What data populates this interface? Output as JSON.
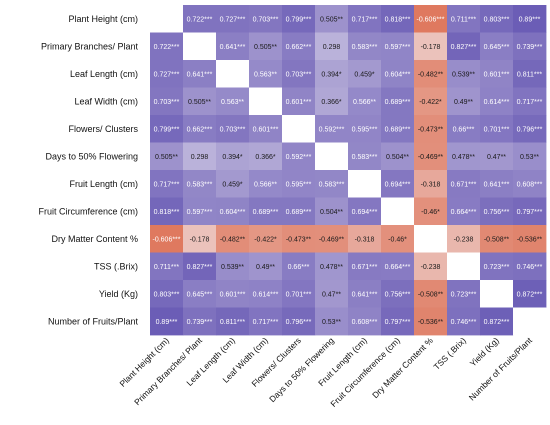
{
  "chart_data": {
    "type": "heatmap",
    "variables": [
      "Plant Height (cm)",
      "Primary Branches/ Plant",
      "Leaf Length (cm)",
      "Leaf Width (cm)",
      "Flowers/ Clusters",
      "Days to 50% Flowering",
      "Fruit Length (cm)",
      "Fruit Circumference (cm)",
      "Dry Matter Content %",
      "TSS (.Brix)",
      "Yield (Kg)",
      "Number of Fruits/Plant"
    ],
    "labels": [
      [
        "",
        "0.722***",
        "0.727***",
        "0.703***",
        "0.799***",
        "0.505**",
        "0.717***",
        "0.818***",
        "-0.606***",
        "0.711***",
        "0.803***",
        "0.89***"
      ],
      [
        "0.722***",
        "",
        "0.641***",
        "0.505**",
        "0.662***",
        "0.298",
        "0.583***",
        "0.597***",
        "-0.178",
        "0.827***",
        "0.645***",
        "0.739***"
      ],
      [
        "0.727***",
        "0.641***",
        "",
        "0.563**",
        "0.703***",
        "0.394*",
        "0.459*",
        "0.604***",
        "-0.482**",
        "0.539**",
        "0.601***",
        "0.811***"
      ],
      [
        "0.703***",
        "0.505**",
        "0.563**",
        "",
        "0.601***",
        "0.366*",
        "0.566**",
        "0.689***",
        "-0.422*",
        "0.49**",
        "0.614***",
        "0.717***"
      ],
      [
        "0.799***",
        "0.662***",
        "0.703***",
        "0.601***",
        "",
        "0.592***",
        "0.595***",
        "0.689***",
        "-0.473**",
        "0.66***",
        "0.701***",
        "0.796***"
      ],
      [
        "0.505**",
        "0.298",
        "0.394*",
        "0.366*",
        "0.592***",
        "",
        "0.583***",
        "0.504**",
        "-0.469**",
        "0.478**",
        "0.47**",
        "0.53**"
      ],
      [
        "0.717***",
        "0.583***",
        "0.459*",
        "0.566**",
        "0.595***",
        "0.583***",
        "",
        "0.694***",
        "-0.318",
        "0.671***",
        "0.641***",
        "0.608***"
      ],
      [
        "0.818***",
        "0.597***",
        "0.604***",
        "0.689***",
        "0.689***",
        "0.504**",
        "0.694***",
        "",
        "-0.46*",
        "0.664***",
        "0.756***",
        "0.797***"
      ],
      [
        "-0.606***",
        "-0.178",
        "-0.482**",
        "-0.422*",
        "-0.473**",
        "-0.469**",
        "-0.318",
        "-0.46*",
        "",
        "-0.238",
        "-0.508**",
        "-0.536**"
      ],
      [
        "0.711***",
        "0.827***",
        "0.539**",
        "0.49**",
        "0.66***",
        "0.478**",
        "0.671***",
        "0.664***",
        "-0.238",
        "",
        "0.723***",
        "0.746***"
      ],
      [
        "0.803***",
        "0.645***",
        "0.601***",
        "0.614***",
        "0.701***",
        "0.47**",
        "0.641***",
        "0.756***",
        "-0.508**",
        "0.723***",
        "",
        "0.872***"
      ],
      [
        "0.89***",
        "0.739***",
        "0.811***",
        "0.717***",
        "0.796***",
        "0.53**",
        "0.608***",
        "0.797***",
        "-0.536**",
        "0.746***",
        "0.872***",
        ""
      ]
    ],
    "colors": {
      "positive": "#5e4fb0",
      "neutral": "#f3eef3",
      "negative": "#dc6b4d",
      "text_dark": "#1a1a1a",
      "text_light": "#ffffff"
    }
  }
}
